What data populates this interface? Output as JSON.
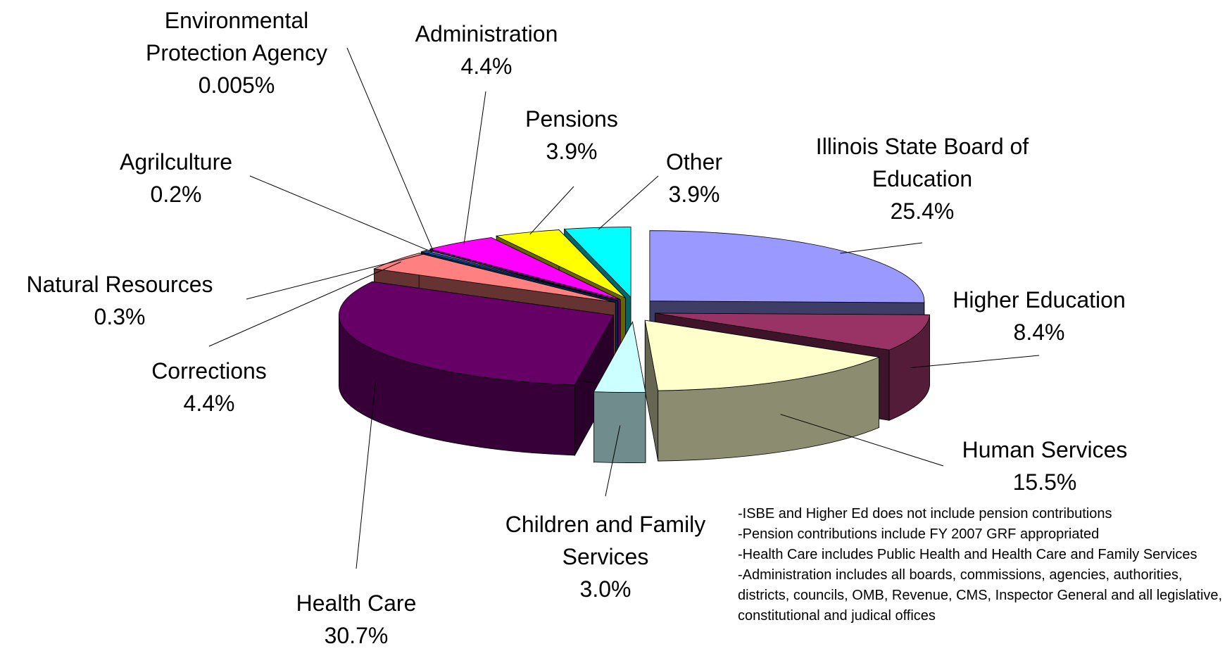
{
  "chart_data": {
    "type": "pie3d",
    "categories": [
      "Illinois State Board of Education",
      "Higher Education",
      "Human Services",
      "Children and Family Services",
      "Health Care",
      "Corrections",
      "Natural Resources",
      "Agrilculture",
      "Environmental Protection Agency",
      "Administration",
      "Pensions",
      "Other"
    ],
    "values": [
      25.4,
      8.4,
      15.5,
      3.0,
      30.7,
      4.4,
      0.3,
      0.2,
      0.005,
      4.4,
      3.9,
      3.9
    ],
    "value_labels": [
      "25.4%",
      "8.4%",
      "15.5%",
      "3.0%",
      "30.7%",
      "4.4%",
      "0.3%",
      "0.2%",
      "0.005%",
      "4.4%",
      "3.9%",
      "3.9%"
    ],
    "colors": [
      "#9999ff",
      "#993366",
      "#ffffcc",
      "#ccffff",
      "#660066",
      "#ff8080",
      "#0066cc",
      "#ccccff",
      "#000080",
      "#ff00ff",
      "#ffff00",
      "#00ffff"
    ],
    "notes": [
      "-ISBE and Higher Ed does not include pension contributions",
      "-Pension contributions include FY 2007 GRF appropriated",
      "-Health Care includes Public Health and Health Care and Family Services",
      "-Administration includes all boards, commissions, agencies, authorities, districts, councils, OMB, Revenue, CMS, Inspector General and all legislative, constitutional and judical offices"
    ]
  }
}
